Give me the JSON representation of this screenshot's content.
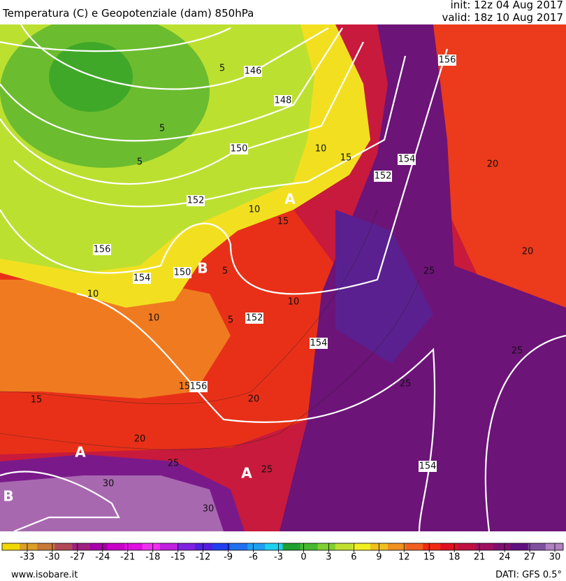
{
  "header": {
    "title": "Temperatura (C) e Geopotenziale (dam) 850hPa",
    "init": "init: 12z 04 Aug 2017",
    "valid": "valid: 18z 10 Aug 2017"
  },
  "map": {
    "labels": [
      "146",
      "148",
      "150",
      "152",
      "150",
      "154",
      "156",
      "152",
      "154",
      "156",
      "152",
      "154",
      "156",
      "154",
      "5",
      "5",
      "5",
      "5",
      "5",
      "10",
      "10",
      "10",
      "10",
      "10",
      "15",
      "15",
      "15",
      "15",
      "20",
      "20",
      "20",
      "20",
      "25",
      "25",
      "25",
      "25",
      "25",
      "30",
      "30",
      "A",
      "A",
      "A",
      "B",
      "B"
    ]
  },
  "colorbar": {
    "range": [
      -36,
      31
    ],
    "ticks": [
      -33,
      -30,
      -27,
      -24,
      -21,
      -18,
      -15,
      -12,
      -9,
      -6,
      -3,
      0,
      3,
      6,
      9,
      12,
      15,
      18,
      21,
      24,
      27,
      30
    ],
    "colors": [
      "#f0d800",
      "#dca028",
      "#c87838",
      "#b04858",
      "#a02080",
      "#a800a8",
      "#c800c8",
      "#e010e0",
      "#f030f0",
      "#c020e0",
      "#8020e0",
      "#5020e0",
      "#2040f0",
      "#2070f0",
      "#20a0f0",
      "#20d0f0",
      "#20a030",
      "#48b830",
      "#80d030",
      "#c0e030",
      "#f0f020",
      "#f0c020",
      "#f09020",
      "#f06020",
      "#f02a10",
      "#e01020",
      "#c01040",
      "#a01060",
      "#801070",
      "#601080",
      "#8050a0",
      "#b080c0"
    ]
  },
  "footer": {
    "source": "www.isobare.it",
    "data": "DATI: GFS 0.5°"
  }
}
